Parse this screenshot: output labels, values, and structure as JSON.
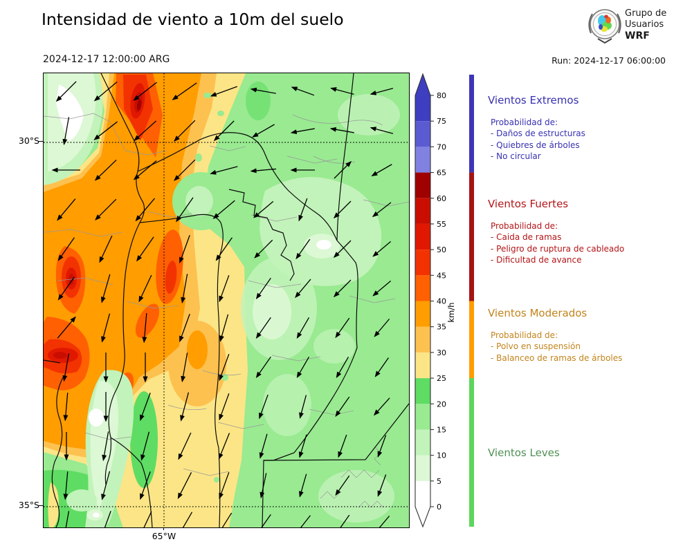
{
  "title": "Intensidad de viento a 10m del suelo",
  "valid_time": "2024-12-17 12:00:00 ARG",
  "run_label": "Run: 2024-12-17 06:00:00",
  "logo": {
    "line1": "Grupo de",
    "line2": "Usuarios",
    "line3": "WRF"
  },
  "map": {
    "lat_labels": {
      "lat30": "30°S",
      "lat35": "35°S"
    },
    "lon_labels": {
      "lon65": "65°W"
    },
    "arrows": {
      "cols": [
        33,
        90,
        147,
        204,
        261,
        318,
        375,
        432,
        489
      ],
      "rows": [
        26,
        83,
        140,
        197,
        254,
        311,
        368,
        425,
        482,
        539,
        596,
        653
      ],
      "lengths": [
        40,
        42,
        42,
        42,
        40,
        36,
        34,
        34,
        33
      ],
      "angles": [
        [
          225,
          230,
          232,
          235,
          250,
          280,
          290,
          285,
          255
        ],
        [
          190,
          232,
          228,
          225,
          225,
          240,
          260,
          280,
          285
        ],
        [
          270,
          226,
          230,
          225,
          255,
          265,
          270,
          45,
          240
        ],
        [
          220,
          225,
          220,
          215,
          230,
          230,
          200,
          225,
          232
        ],
        [
          215,
          205,
          215,
          200,
          215,
          225,
          215,
          225,
          230
        ],
        [
          215,
          196,
          205,
          190,
          200,
          215,
          220,
          225,
          230
        ],
        [
          40,
          195,
          185,
          200,
          196,
          215,
          210,
          215,
          220
        ],
        [
          190,
          180,
          180,
          190,
          200,
          215,
          210,
          210,
          215
        ],
        [
          185,
          180,
          200,
          195,
          200,
          200,
          195,
          215,
          222
        ],
        [
          180,
          190,
          195,
          205,
          202,
          196,
          197,
          200,
          200
        ],
        [
          185,
          195,
          200,
          207,
          200,
          192,
          196,
          215,
          200
        ],
        [
          190,
          200,
          205,
          210,
          212,
          215,
          218,
          215,
          220
        ]
      ]
    }
  },
  "colorbar": {
    "unit": "km/h",
    "tick_values": [
      0,
      5,
      10,
      15,
      20,
      25,
      30,
      35,
      40,
      45,
      50,
      55,
      60,
      65,
      70,
      75,
      80
    ],
    "segment_colors": [
      "#ffffff",
      "#dcf8d4",
      "#c2f3ba",
      "#99ea91",
      "#5fdc63",
      "#fce586",
      "#fdc150",
      "#ff9d01",
      "#ff6002",
      "#f23301",
      "#e11801",
      "#c90e01",
      "#9f0101",
      "#8181e1",
      "#5b5bd1",
      "#3e3ec1"
    ],
    "over_color": "#3e3ec1",
    "under_color": "#ffffff"
  },
  "categories": [
    {
      "name": "Vientos Extremos",
      "text_color": "#3730b0",
      "bar_color": "#3e36b8",
      "range_kmh": [
        65,
        85
      ],
      "prob_title": "Probabilidad de:",
      "items": [
        "- Daños de estructuras",
        "- Quiebres de árboles",
        "- No circular"
      ]
    },
    {
      "name": "Vientos Fuertes",
      "text_color": "#b21518",
      "bar_color": "#a51313",
      "range_kmh": [
        40,
        65
      ],
      "prob_title": "Probabilidad de:",
      "items": [
        "- Caida de ramas",
        "- Peligro de ruptura de cableado",
        "- Dificultad de avance"
      ]
    },
    {
      "name": "Vientos Moderados",
      "text_color": "#c2841c",
      "bar_color": "#ff9d01",
      "range_kmh": [
        25,
        40
      ],
      "prob_title": "Probabilidad de:",
      "items": [
        "- Polvo en suspensión",
        "- Balanceo de ramas de árboles"
      ]
    },
    {
      "name": "Vientos Leves",
      "text_color": "#4f9054",
      "bar_color": "#5cd65c",
      "range_kmh": [
        0,
        25
      ],
      "prob_title": "",
      "items": []
    }
  ]
}
